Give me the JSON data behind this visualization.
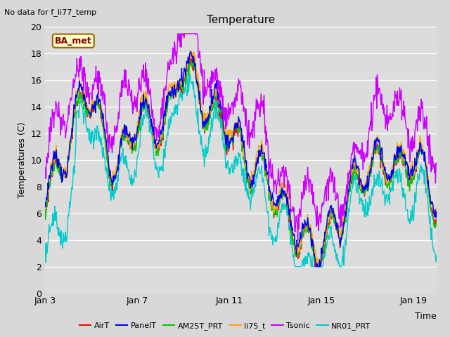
{
  "title": "Temperature",
  "xlabel": "Time",
  "ylabel": "Temperatures (C)",
  "note": "No data for f_li77_temp",
  "legend_label": "BA_met",
  "ylim": [
    0,
    20
  ],
  "yticks": [
    0,
    2,
    4,
    6,
    8,
    10,
    12,
    14,
    16,
    18,
    20
  ],
  "xtick_labels": [
    "Jan 3",
    "Jan 7",
    "Jan 11",
    "Jan 15",
    "Jan 19"
  ],
  "bg_color": "#dcdcdc",
  "plot_bg": "#dcdcdc",
  "series": {
    "AirT": {
      "color": "#ff0000",
      "lw": 1.0
    },
    "PanelT": {
      "color": "#0000ff",
      "lw": 1.0
    },
    "AM25T_PRT": {
      "color": "#00cc00",
      "lw": 1.0
    },
    "li75_t": {
      "color": "#ffa500",
      "lw": 1.0
    },
    "Tsonic": {
      "color": "#cc00ff",
      "lw": 1.0
    },
    "NR01_PRT": {
      "color": "#00cccc",
      "lw": 1.0
    }
  },
  "n_points": 800,
  "seed": 7
}
